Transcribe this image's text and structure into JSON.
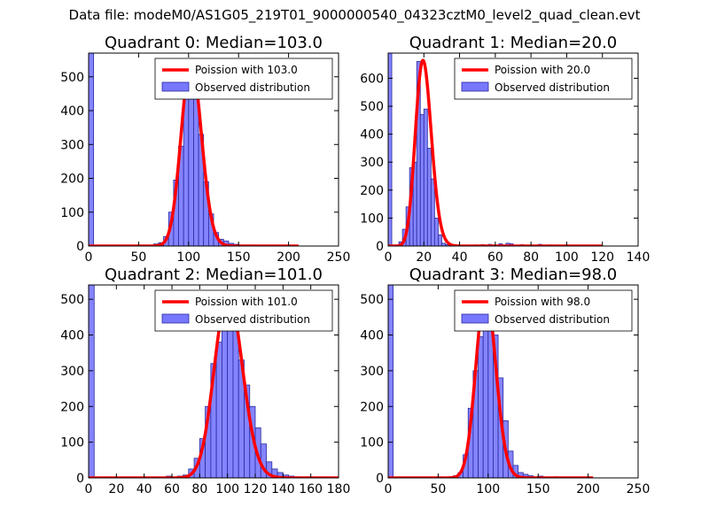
{
  "suptitle": "Data file: modeM0/AS1G05_219T01_9000000540_04323cztM0_level2_quad_clean.evt",
  "colors": {
    "bar": "#7777ff",
    "bar_edge": "#2a2a9e",
    "line": "#ff0000"
  },
  "chart_data": [
    {
      "type": "bar",
      "title": "Quadrant 0: Median=103.0",
      "xlim": [
        0,
        250
      ],
      "ylim": [
        0,
        570
      ],
      "xticks": [
        0,
        50,
        100,
        150,
        200,
        250
      ],
      "yticks": [
        0,
        100,
        200,
        300,
        400,
        500
      ],
      "legend": {
        "line_label": "Poission with 103.0",
        "bar_label": "Observed distribution",
        "loc": "upper right"
      },
      "bin_width": 5,
      "bars": [
        {
          "x": 0,
          "y": 570
        },
        {
          "x": 65,
          "y": 6
        },
        {
          "x": 70,
          "y": 10
        },
        {
          "x": 75,
          "y": 28
        },
        {
          "x": 80,
          "y": 100
        },
        {
          "x": 85,
          "y": 195
        },
        {
          "x": 90,
          "y": 295
        },
        {
          "x": 95,
          "y": 475
        },
        {
          "x": 100,
          "y": 550
        },
        {
          "x": 105,
          "y": 460
        },
        {
          "x": 110,
          "y": 330
        },
        {
          "x": 115,
          "y": 190
        },
        {
          "x": 120,
          "y": 95
        },
        {
          "x": 125,
          "y": 40
        },
        {
          "x": 130,
          "y": 20
        },
        {
          "x": 135,
          "y": 15
        },
        {
          "x": 140,
          "y": 8
        },
        {
          "x": 145,
          "y": 5
        },
        {
          "x": 155,
          "y": 3
        },
        {
          "x": 160,
          "y": 3
        },
        {
          "x": 175,
          "y": 2
        }
      ],
      "poisson_mean": 103.0,
      "poisson_scale": 545,
      "curve_range": [
        0,
        210
      ]
    },
    {
      "type": "bar",
      "title": "Quadrant 1: Median=20.0",
      "xlim": [
        0,
        140
      ],
      "ylim": [
        0,
        690
      ],
      "xticks": [
        0,
        20,
        40,
        60,
        80,
        100,
        120,
        140
      ],
      "yticks": [
        0,
        100,
        200,
        300,
        400,
        500,
        600
      ],
      "legend": {
        "line_label": "Poission with 20.0",
        "bar_label": "Observed distribution",
        "loc": "upper right"
      },
      "bin_width": 2,
      "bars": [
        {
          "x": 0,
          "y": 690
        },
        {
          "x": 6,
          "y": 15
        },
        {
          "x": 8,
          "y": 60
        },
        {
          "x": 10,
          "y": 140
        },
        {
          "x": 12,
          "y": 280
        },
        {
          "x": 14,
          "y": 300
        },
        {
          "x": 16,
          "y": 660
        },
        {
          "x": 18,
          "y": 470
        },
        {
          "x": 20,
          "y": 490
        },
        {
          "x": 22,
          "y": 350
        },
        {
          "x": 24,
          "y": 240
        },
        {
          "x": 26,
          "y": 100
        },
        {
          "x": 28,
          "y": 40
        },
        {
          "x": 30,
          "y": 10
        },
        {
          "x": 32,
          "y": 5
        },
        {
          "x": 34,
          "y": 3
        },
        {
          "x": 48,
          "y": 4
        },
        {
          "x": 52,
          "y": 5
        },
        {
          "x": 56,
          "y": 6
        },
        {
          "x": 62,
          "y": 8
        },
        {
          "x": 66,
          "y": 10
        },
        {
          "x": 68,
          "y": 8
        },
        {
          "x": 74,
          "y": 5
        },
        {
          "x": 84,
          "y": 6
        },
        {
          "x": 90,
          "y": 4
        },
        {
          "x": 100,
          "y": 3
        }
      ],
      "poisson_mean": 20.0,
      "poisson_scale": 660,
      "curve_range": [
        0,
        120
      ]
    },
    {
      "type": "bar",
      "title": "Quadrant 2: Median=101.0",
      "xlim": [
        0,
        180
      ],
      "ylim": [
        0,
        540
      ],
      "xticks": [
        0,
        20,
        40,
        60,
        80,
        100,
        120,
        140,
        160,
        180
      ],
      "yticks": [
        0,
        100,
        200,
        300,
        400,
        500
      ],
      "legend": {
        "line_label": "Poission with 101.0",
        "bar_label": "Observed distribution",
        "loc": "upper right"
      },
      "bin_width": 4,
      "bars": [
        {
          "x": 0,
          "y": 540
        },
        {
          "x": 56,
          "y": 5
        },
        {
          "x": 64,
          "y": 5
        },
        {
          "x": 68,
          "y": 8
        },
        {
          "x": 72,
          "y": 25
        },
        {
          "x": 76,
          "y": 55
        },
        {
          "x": 80,
          "y": 110
        },
        {
          "x": 84,
          "y": 200
        },
        {
          "x": 88,
          "y": 320
        },
        {
          "x": 92,
          "y": 380
        },
        {
          "x": 96,
          "y": 480
        },
        {
          "x": 100,
          "y": 470
        },
        {
          "x": 104,
          "y": 450
        },
        {
          "x": 108,
          "y": 330
        },
        {
          "x": 112,
          "y": 260
        },
        {
          "x": 116,
          "y": 200
        },
        {
          "x": 120,
          "y": 140
        },
        {
          "x": 124,
          "y": 95
        },
        {
          "x": 128,
          "y": 45
        },
        {
          "x": 132,
          "y": 25
        },
        {
          "x": 136,
          "y": 15
        },
        {
          "x": 140,
          "y": 8
        },
        {
          "x": 144,
          "y": 5
        },
        {
          "x": 148,
          "y": 3
        },
        {
          "x": 156,
          "y": 3
        },
        {
          "x": 164,
          "y": 2
        }
      ],
      "poisson_mean": 101.0,
      "poisson_scale": 515,
      "curve_range": [
        0,
        180
      ]
    },
    {
      "type": "bar",
      "title": "Quadrant 3: Median=98.0",
      "xlim": [
        0,
        250
      ],
      "ylim": [
        0,
        540
      ],
      "xticks": [
        0,
        50,
        100,
        150,
        200,
        250
      ],
      "yticks": [
        0,
        100,
        200,
        300,
        400,
        500
      ],
      "legend": {
        "line_label": "Poission with 98.0",
        "bar_label": "Observed distribution",
        "loc": "upper right"
      },
      "bin_width": 5,
      "bars": [
        {
          "x": 0,
          "y": 540
        },
        {
          "x": 65,
          "y": 6
        },
        {
          "x": 70,
          "y": 15
        },
        {
          "x": 75,
          "y": 65
        },
        {
          "x": 80,
          "y": 195
        },
        {
          "x": 85,
          "y": 300
        },
        {
          "x": 90,
          "y": 395
        },
        {
          "x": 95,
          "y": 470
        },
        {
          "x": 100,
          "y": 440
        },
        {
          "x": 105,
          "y": 400
        },
        {
          "x": 110,
          "y": 280
        },
        {
          "x": 115,
          "y": 160
        },
        {
          "x": 120,
          "y": 75
        },
        {
          "x": 125,
          "y": 35
        },
        {
          "x": 130,
          "y": 15
        },
        {
          "x": 135,
          "y": 10
        },
        {
          "x": 140,
          "y": 6
        },
        {
          "x": 145,
          "y": 3
        },
        {
          "x": 150,
          "y": 5
        },
        {
          "x": 165,
          "y": 3
        },
        {
          "x": 180,
          "y": 2
        }
      ],
      "poisson_mean": 98.0,
      "poisson_scale": 520,
      "curve_range": [
        0,
        205
      ]
    }
  ]
}
